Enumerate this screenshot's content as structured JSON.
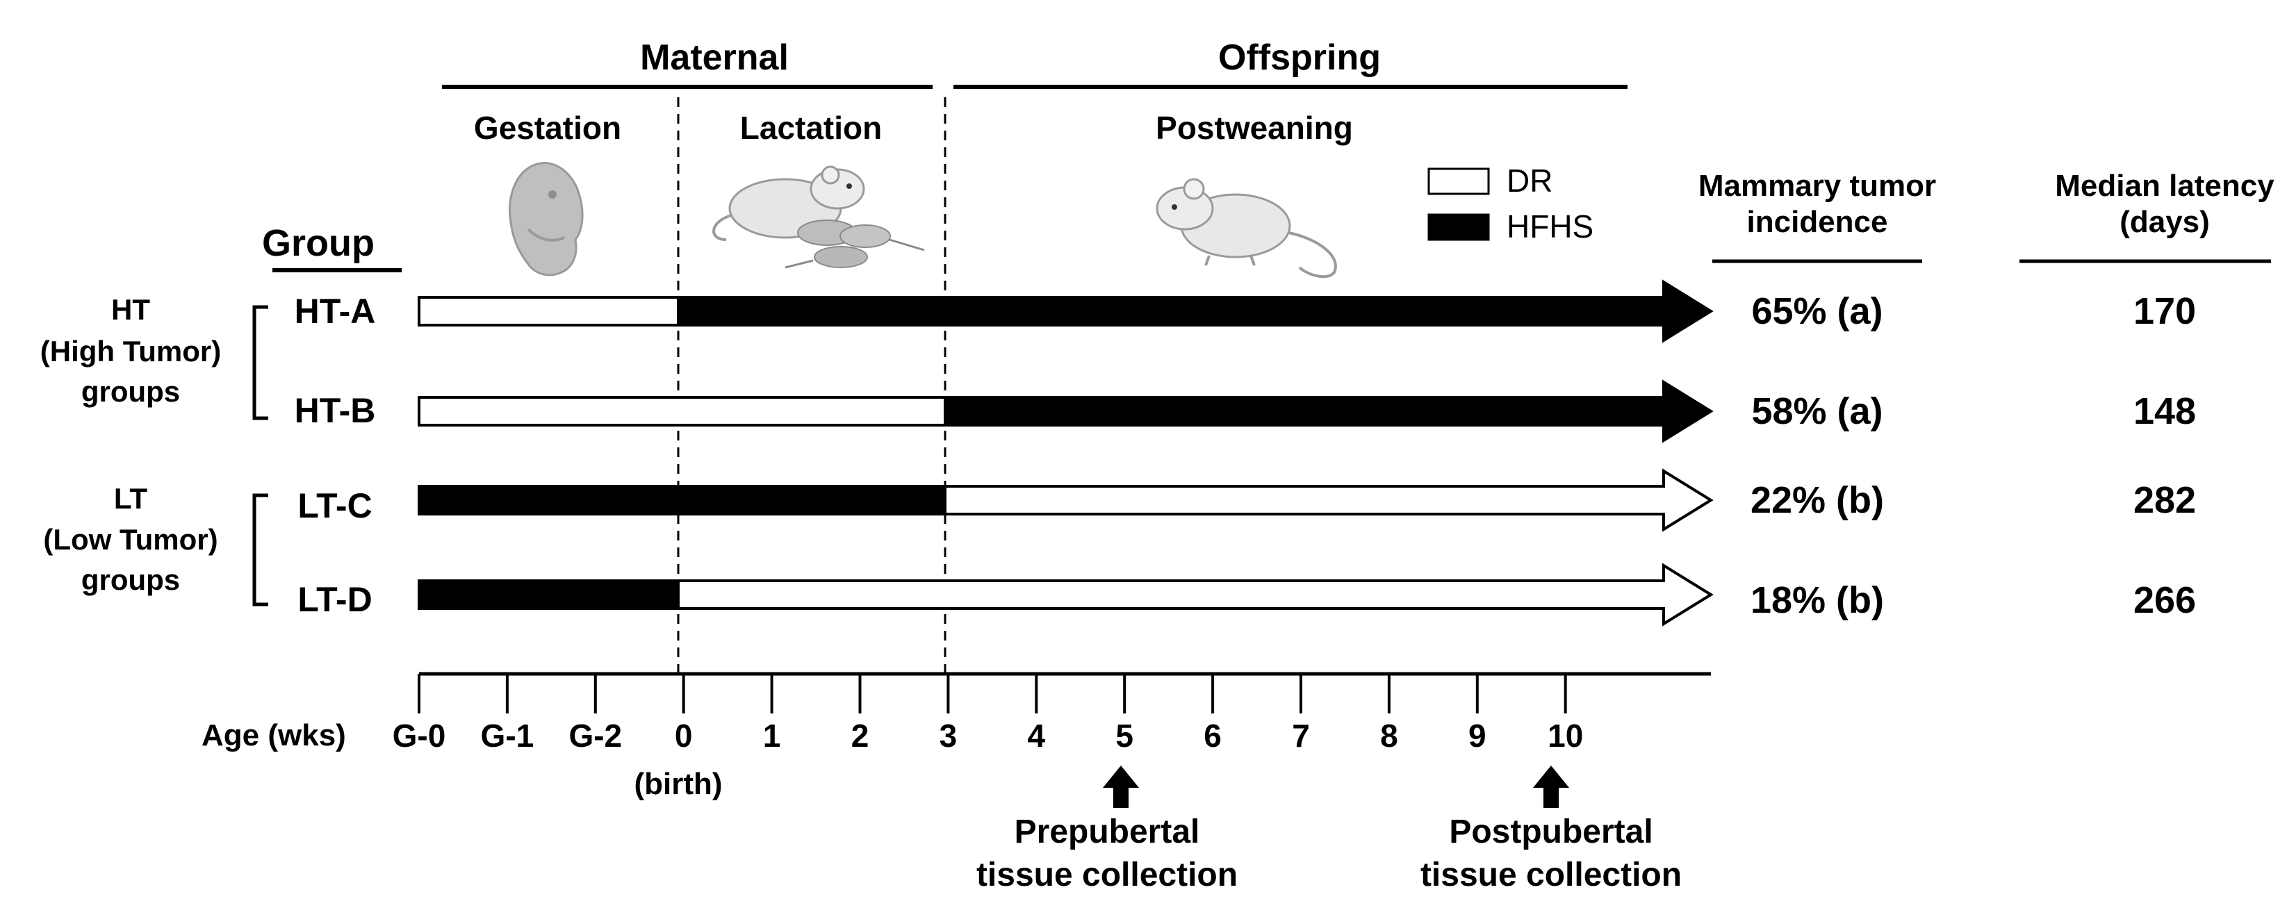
{
  "phases": {
    "maternal": "Maternal",
    "offspring": "Offspring",
    "gestation": "Gestation",
    "lactation": "Lactation",
    "postweaning": "Postweaning"
  },
  "icons": {
    "gestation": "fetus-icon",
    "lactation": "mother-mouse-with-pups-icon",
    "postweaning": "mouse-icon"
  },
  "legend": [
    {
      "label": "DR",
      "color": "#ffffff"
    },
    {
      "label": "HFHS",
      "color": "#000000"
    }
  ],
  "group_header": "Group",
  "group_sets": [
    {
      "code": "HT",
      "label_line1": "(High Tumor)",
      "label_line2": "groups"
    },
    {
      "code": "LT",
      "label_line1": "(Low Tumor)",
      "label_line2": "groups"
    }
  ],
  "columns": {
    "incidence_line1": "Mammary tumor",
    "incidence_line2": "incidence",
    "latency_line1": "Median latency",
    "latency_line2": "(days)"
  },
  "groups": [
    {
      "name": "HT-A",
      "dr_start": "G-0",
      "hfhs_start": "0",
      "incidence": "65% (a)",
      "latency": "170"
    },
    {
      "name": "HT-B",
      "dr_start": "G-0",
      "hfhs_start": "3",
      "incidence": "58% (a)",
      "latency": "148"
    },
    {
      "name": "LT-C",
      "hfhs_start": "G-0",
      "dr_start": "3",
      "incidence": "22% (b)",
      "latency": "282"
    },
    {
      "name": "LT-D",
      "hfhs_start": "G-0",
      "dr_start": "0",
      "incidence": "18% (b)",
      "latency": "266"
    }
  ],
  "axis": {
    "label": "Age (wks)",
    "ticks": [
      "G-0",
      "G-1",
      "G-2",
      "0",
      "1",
      "2",
      "3",
      "4",
      "5",
      "6",
      "7",
      "8",
      "9",
      "10"
    ],
    "birth_note": "(birth)"
  },
  "collections": [
    {
      "week": "5",
      "label_line1": "Prepubertal",
      "label_line2": "tissue collection"
    },
    {
      "week": "10",
      "label_line1": "Postpubertal",
      "label_line2": "tissue collection"
    }
  ]
}
